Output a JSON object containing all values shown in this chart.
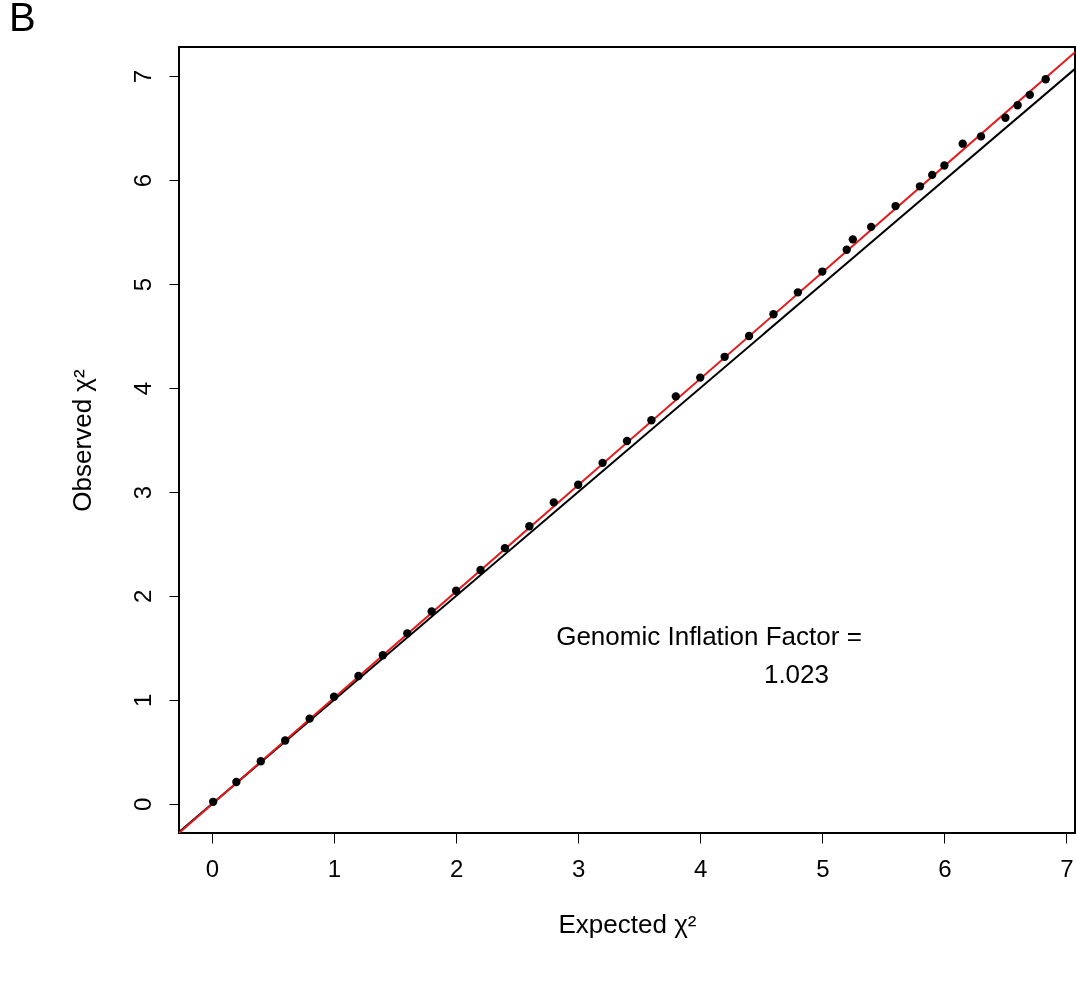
{
  "chart_data": {
    "type": "scatter",
    "xlabel": "Expected χ²",
    "ylabel": "Observed χ²",
    "xlim": [
      -0.27,
      7.07
    ],
    "ylim": [
      -0.28,
      7.28
    ],
    "xticks": [
      0,
      1,
      2,
      3,
      4,
      5,
      6,
      7
    ],
    "yticks": [
      0,
      1,
      2,
      3,
      4,
      5,
      6,
      7
    ],
    "annotations": [
      "B",
      "Genomic Inflation Factor =",
      "1.023"
    ],
    "series": [
      {
        "type": "line",
        "color": "#000000",
        "x": [
          -0.27,
          7.07
        ],
        "values": [
          -0.27,
          7.07
        ]
      },
      {
        "type": "line",
        "color": "#e41a1c",
        "x": [
          -0.27,
          7.07
        ],
        "values": [
          -0.28,
          7.23
        ]
      },
      {
        "marker": "circle",
        "color": "#000000",
        "x": [
          0.01,
          0.2,
          0.4,
          0.6,
          0.8,
          1.0,
          1.2,
          1.4,
          1.6,
          1.8,
          2.0,
          2.2,
          2.4,
          2.6,
          2.8,
          3.0,
          3.2,
          3.4,
          3.6,
          3.8,
          4.0,
          4.2,
          4.4,
          4.6,
          4.8,
          5.0,
          5.2,
          5.25,
          5.4,
          5.6,
          5.8,
          5.9,
          6.0,
          6.15,
          6.3,
          6.5,
          6.6,
          6.7,
          6.83
        ],
        "values": [
          0.02,
          0.21,
          0.41,
          0.61,
          0.82,
          1.03,
          1.23,
          1.43,
          1.64,
          1.85,
          2.05,
          2.25,
          2.46,
          2.67,
          2.9,
          3.07,
          3.28,
          3.49,
          3.69,
          3.92,
          4.1,
          4.3,
          4.5,
          4.71,
          4.92,
          5.12,
          5.33,
          5.43,
          5.55,
          5.75,
          5.94,
          6.05,
          6.14,
          6.35,
          6.42,
          6.6,
          6.72,
          6.82,
          6.97
        ]
      }
    ]
  }
}
